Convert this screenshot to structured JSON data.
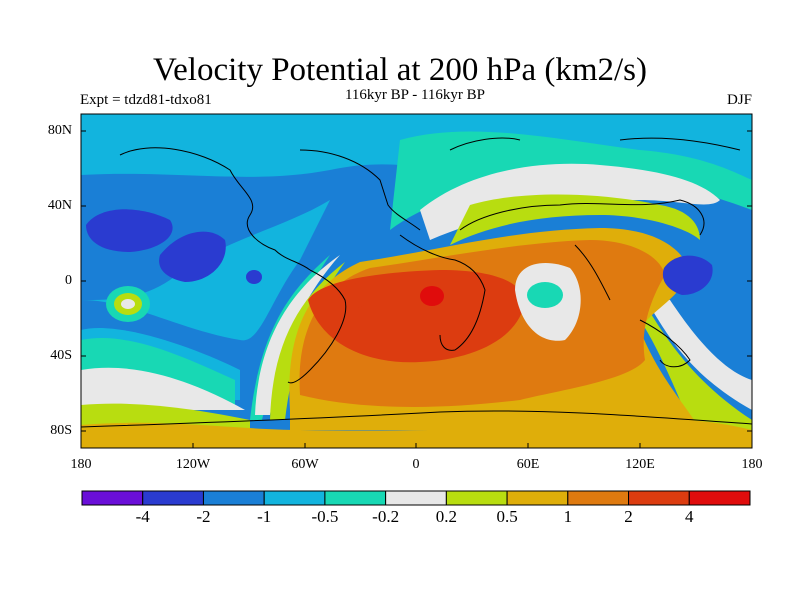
{
  "header": {
    "title": "Velocity Potential at 200 hPa (km2/s)",
    "left": "Expt = tdzd81-tdxo81",
    "center": "116kyr BP - 116kyr BP",
    "right": "DJF"
  },
  "axes": {
    "lat_ticks": [
      "80N",
      "40N",
      "0",
      "40S",
      "80S"
    ],
    "lon_ticks": [
      "180",
      "120W",
      "60W",
      "0",
      "60E",
      "120E",
      "180"
    ]
  },
  "colorbar": {
    "colors": [
      "#6a0fd8",
      "#2a3bd0",
      "#1a7fd6",
      "#12b4de",
      "#18d8b4",
      "#e8e8e8",
      "#b8dd10",
      "#dfae0a",
      "#df7a10",
      "#dc3c10",
      "#e00c0c"
    ],
    "labels": [
      "-4",
      "-2",
      "-1",
      "-0.5",
      "-0.2",
      "0.2",
      "0.5",
      "1",
      "2",
      "4"
    ]
  },
  "chart_data": {
    "type": "heatmap",
    "title": "Velocity Potential at 200 hPa (km2/s)",
    "subtitle": "116kyr BP - 116kyr BP",
    "experiment": "Expt = tdzd81-tdxo81",
    "season": "DJF",
    "xlim": [
      -180,
      180
    ],
    "ylim": [
      -90,
      90
    ],
    "contour_levels": [
      -4,
      -2,
      -1,
      -0.5,
      -0.2,
      0.2,
      0.5,
      1,
      2,
      4
    ]
  }
}
